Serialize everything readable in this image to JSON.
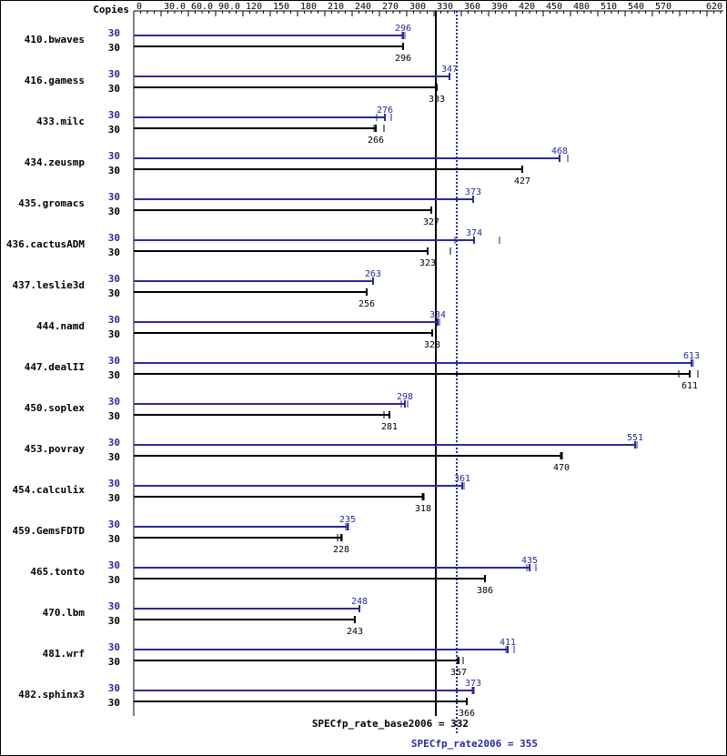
{
  "chart_data": {
    "type": "bar",
    "title": "",
    "copies_header": "Copies",
    "x_ticks": [
      "0",
      "30.0",
      "60.0",
      "90.0",
      "120",
      "150",
      "180",
      "210",
      "240",
      "270",
      "300",
      "330",
      "360",
      "390",
      "420",
      "450",
      "480",
      "510",
      "540",
      "570",
      "620"
    ],
    "xlim": [
      0,
      620
    ],
    "grid": false,
    "colors": {
      "peak": "#2a2a9c",
      "base": "#000000"
    },
    "benchmarks": [
      {
        "name": "410.bwaves",
        "peak_copies": "30",
        "peak": 296,
        "peak_label": "296",
        "peak_range": [
          295,
          298
        ],
        "base_copies": "30",
        "base": 296,
        "base_label": "296",
        "base_range": [
          296,
          296
        ]
      },
      {
        "name": "416.gamess",
        "peak_copies": "30",
        "peak": 347,
        "peak_label": "347",
        "peak_range": [
          347,
          347
        ],
        "base_copies": "30",
        "base": 333,
        "base_label": "333",
        "base_range": [
          333,
          333
        ]
      },
      {
        "name": "433.milc",
        "peak_copies": "30",
        "peak": 276,
        "peak_label": "276",
        "peak_range": [
          267,
          283
        ],
        "base_copies": "30",
        "base": 266,
        "base_label": "266",
        "base_range": [
          264,
          275
        ]
      },
      {
        "name": "434.zeusmp",
        "peak_copies": "30",
        "peak": 468,
        "peak_label": "468",
        "peak_range": [
          468,
          477
        ],
        "base_copies": "30",
        "base": 427,
        "base_label": "427",
        "base_range": [
          427,
          427
        ]
      },
      {
        "name": "435.gromacs",
        "peak_copies": "30",
        "peak": 373,
        "peak_label": "373",
        "peak_range": [
          373,
          373
        ],
        "base_copies": "30",
        "base": 327,
        "base_label": "327",
        "base_range": [
          327,
          327
        ]
      },
      {
        "name": "436.cactusADM",
        "peak_copies": "30",
        "peak": 374,
        "peak_label": "374",
        "peak_range": [
          353,
          402
        ],
        "base_copies": "30",
        "base": 323,
        "base_label": "323",
        "base_range": [
          323,
          348
        ]
      },
      {
        "name": "437.leslie3d",
        "peak_copies": "30",
        "peak": 263,
        "peak_label": "263",
        "peak_range": [
          263,
          263
        ],
        "base_copies": "30",
        "base": 256,
        "base_label": "256",
        "base_range": [
          256,
          256
        ]
      },
      {
        "name": "444.namd",
        "peak_copies": "30",
        "peak": 334,
        "peak_label": "334",
        "peak_range": [
          334,
          336
        ],
        "base_copies": "30",
        "base": 328,
        "base_label": "328",
        "base_range": [
          328,
          332
        ]
      },
      {
        "name": "447.dealII",
        "peak_copies": "30",
        "peak": 613,
        "peak_label": "613",
        "peak_range": [
          613,
          615
        ],
        "base_copies": "30",
        "base": 611,
        "base_label": "611",
        "base_range": [
          599,
          620
        ]
      },
      {
        "name": "450.soplex",
        "peak_copies": "30",
        "peak": 298,
        "peak_label": "298",
        "peak_range": [
          294,
          301
        ],
        "base_copies": "30",
        "base": 281,
        "base_label": "281",
        "base_range": [
          275,
          281
        ]
      },
      {
        "name": "453.povray",
        "peak_copies": "30",
        "peak": 551,
        "peak_label": "551",
        "peak_range": [
          551,
          553
        ],
        "base_copies": "30",
        "base": 470,
        "base_label": "470",
        "base_range": [
          469,
          471
        ]
      },
      {
        "name": "454.calculix",
        "peak_copies": "30",
        "peak": 361,
        "peak_label": "361",
        "peak_range": [
          361,
          363
        ],
        "base_copies": "30",
        "base": 318,
        "base_label": "318",
        "base_range": [
          317,
          319
        ]
      },
      {
        "name": "459.GemsFDTD",
        "peak_copies": "30",
        "peak": 235,
        "peak_label": "235",
        "peak_range": [
          233,
          236
        ],
        "base_copies": "30",
        "base": 228,
        "base_label": "228",
        "base_range": [
          224,
          229
        ]
      },
      {
        "name": "465.tonto",
        "peak_copies": "30",
        "peak": 435,
        "peak_label": "435",
        "peak_range": [
          432,
          442
        ],
        "base_copies": "30",
        "base": 386,
        "base_label": "386",
        "base_range": [
          386,
          386
        ]
      },
      {
        "name": "470.lbm",
        "peak_copies": "30",
        "peak": 248,
        "peak_label": "248",
        "peak_range": [
          248,
          248
        ],
        "base_copies": "30",
        "base": 243,
        "base_label": "243",
        "base_range": [
          243,
          243
        ]
      },
      {
        "name": "481.wrf",
        "peak_copies": "30",
        "peak": 411,
        "peak_label": "411",
        "peak_range": [
          409,
          418
        ],
        "base_copies": "30",
        "base": 357,
        "base_label": "357",
        "base_range": [
          356,
          362
        ]
      },
      {
        "name": "482.sphinx3",
        "peak_copies": "30",
        "peak": 373,
        "peak_label": "373",
        "peak_range": [
          372,
          374
        ],
        "base_copies": "30",
        "base": 366,
        "base_label": "366",
        "base_range": [
          366,
          366
        ]
      }
    ],
    "reference_lines": [
      {
        "name": "base",
        "value": 332,
        "label": "SPECfp_rate_base2006 = 332",
        "style": "solid"
      },
      {
        "name": "peak",
        "value": 355,
        "label": "SPECfp_rate2006 = 355",
        "style": "dotted"
      }
    ]
  }
}
